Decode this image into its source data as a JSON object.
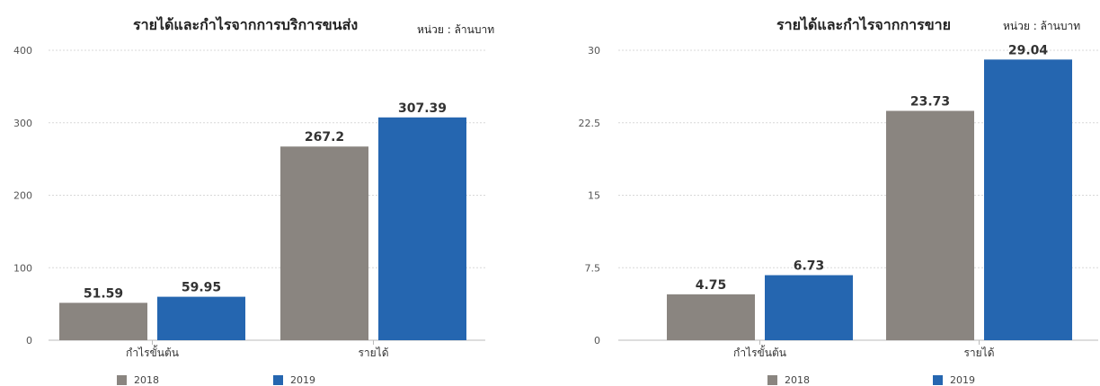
{
  "chart_data": [
    {
      "type": "bar",
      "title": "รายได้และกำไรจากการบริการขนส่ง",
      "unit_label": "หน่วย : ล้านบาท",
      "categories": [
        "กำไรขั้นต้น",
        "รายได้"
      ],
      "series": [
        {
          "name": "2018",
          "color": "#8a8580",
          "values": [
            51.59,
            267.2
          ],
          "labels": [
            "51.59",
            "267.2"
          ]
        },
        {
          "name": "2019",
          "color": "#2566b0",
          "values": [
            59.95,
            307.39
          ],
          "labels": [
            "59.95",
            "307.39"
          ]
        }
      ],
      "ylim": [
        0,
        400
      ],
      "yticks": [
        0,
        100,
        200,
        300,
        400
      ],
      "ytick_labels": [
        "0",
        "100",
        "200",
        "300",
        "400"
      ],
      "grid": true,
      "legend": "bottom"
    },
    {
      "type": "bar",
      "title": "รายได้และกำไรจากการขาย",
      "unit_label": "หน่วย : ล้านบาท",
      "categories": [
        "กำไรขั้นต้น",
        "รายได้"
      ],
      "series": [
        {
          "name": "2018",
          "color": "#8a8580",
          "values": [
            4.75,
            23.73
          ],
          "labels": [
            "4.75",
            "23.73"
          ]
        },
        {
          "name": "2019",
          "color": "#2566b0",
          "values": [
            6.73,
            29.04
          ],
          "labels": [
            "6.73",
            "29.04"
          ]
        }
      ],
      "ylim": [
        0,
        30
      ],
      "yticks": [
        0,
        7.5,
        15,
        22.5,
        30
      ],
      "ytick_labels": [
        "0",
        "7.5",
        "15",
        "22.5",
        "30"
      ],
      "grid": true,
      "legend": "bottom"
    }
  ]
}
